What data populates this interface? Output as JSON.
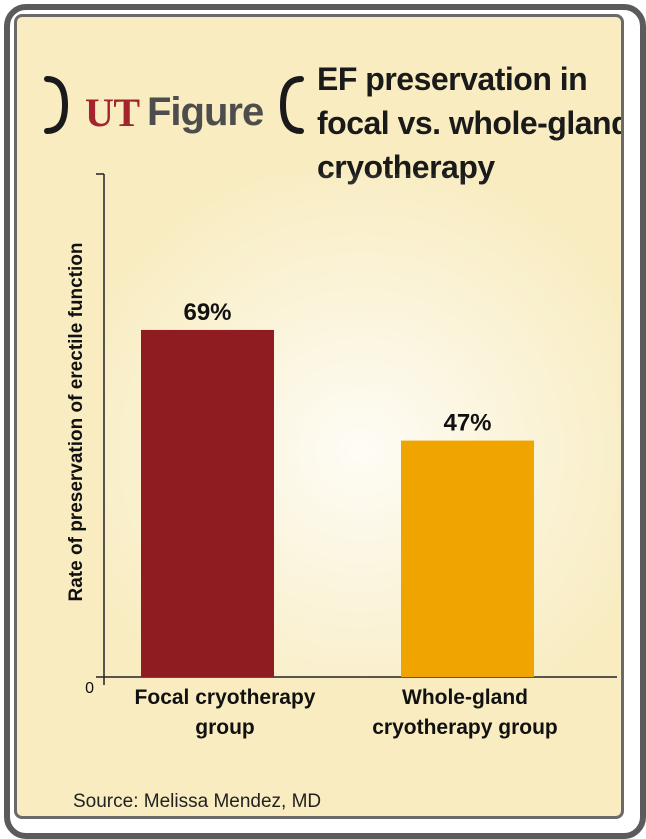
{
  "brand": {
    "ut": "UT",
    "figure": "Figure"
  },
  "title_lines": [
    "EF preservation in",
    "focal vs. whole-gland",
    "cryotherapy"
  ],
  "source": "Source: Melissa Mendez, MD",
  "colors": {
    "background": "#f8ecc0",
    "focal_bar": "#8e1c20",
    "whole_bar": "#f0a400",
    "ut_red": "#a3242a",
    "frame": "#5b5b5b"
  },
  "chart_data": {
    "type": "bar",
    "categories": [
      [
        "Focal cryotherapy",
        "group"
      ],
      [
        "Whole-gland",
        "cryotherapy group"
      ]
    ],
    "values": [
      69,
      47
    ],
    "value_labels": [
      "69%",
      "47%"
    ],
    "ylabel": "Rate of preservation of erectile function",
    "y_tick_labels": [
      "0"
    ],
    "ylim": [
      0,
      100
    ],
    "grid": false,
    "legend": "none"
  }
}
